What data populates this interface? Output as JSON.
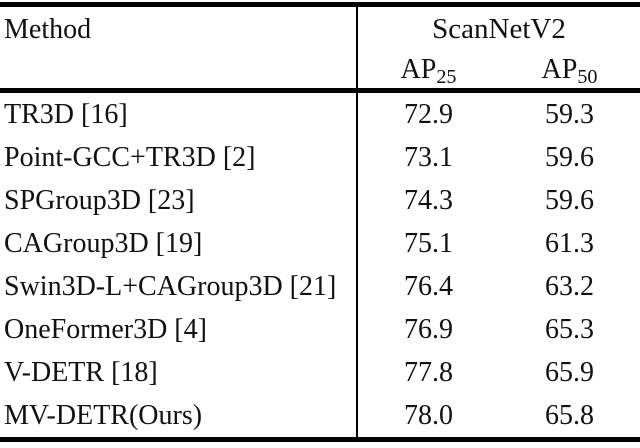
{
  "table": {
    "method_header": "Method",
    "group_header": "ScanNetV2",
    "columns": [
      {
        "label": "AP",
        "sub": "25"
      },
      {
        "label": "AP",
        "sub": "50"
      }
    ],
    "rows": [
      {
        "method": "TR3D [16]",
        "ap25": "72.9",
        "ap50": "59.3"
      },
      {
        "method": "Point-GCC+TR3D [2]",
        "ap25": "73.1",
        "ap50": "59.6"
      },
      {
        "method": "SPGroup3D [23]",
        "ap25": "74.3",
        "ap50": "59.6"
      },
      {
        "method": "CAGroup3D [19]",
        "ap25": "75.1",
        "ap50": "61.3"
      },
      {
        "method": "Swin3D-L+CAGroup3D [21]",
        "ap25": "76.4",
        "ap50": "63.2"
      },
      {
        "method": "OneFormer3D [4]",
        "ap25": "76.9",
        "ap50": "65.3"
      },
      {
        "method": "V-DETR [18]",
        "ap25": "77.8",
        "ap50": "65.9"
      },
      {
        "method": "MV-DETR(Ours)",
        "ap25": "78.0",
        "ap50": "65.8"
      }
    ]
  },
  "chart_data": {
    "type": "table",
    "title": "ScanNetV2",
    "columns": [
      "Method",
      "AP25",
      "AP50"
    ],
    "rows": [
      [
        "TR3D [16]",
        72.9,
        59.3
      ],
      [
        "Point-GCC+TR3D [2]",
        73.1,
        59.6
      ],
      [
        "SPGroup3D [23]",
        74.3,
        59.6
      ],
      [
        "CAGroup3D [19]",
        75.1,
        61.3
      ],
      [
        "Swin3D-L+CAGroup3D [21]",
        76.4,
        63.2
      ],
      [
        "OneFormer3D [4]",
        76.9,
        65.3
      ],
      [
        "V-DETR [18]",
        77.8,
        65.9
      ],
      [
        "MV-DETR(Ours)",
        78.0,
        65.8
      ]
    ]
  },
  "colors": {
    "background": "#ffffff",
    "text": "#111111",
    "rule": "#000000"
  }
}
